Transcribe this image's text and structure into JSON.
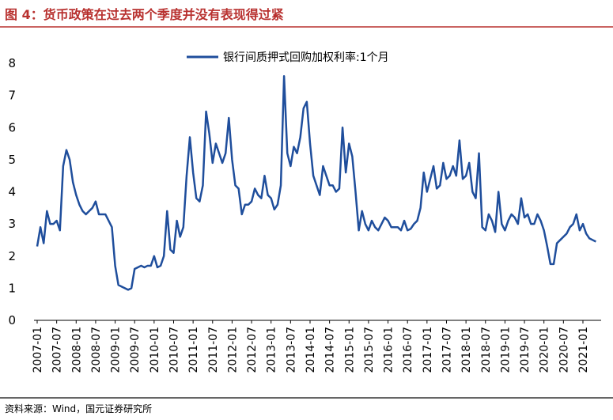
{
  "chart_data": {
    "type": "line",
    "title": "图 4：货币政策在过去两个季度并没有表现得过紧",
    "source": "资料来源：Wind，国元证券研究所",
    "categories": [
      "2007-01",
      null,
      null,
      null,
      null,
      null,
      "2007-07",
      null,
      null,
      null,
      null,
      null,
      "2008-01",
      null,
      null,
      null,
      null,
      null,
      "2008-07",
      null,
      null,
      null,
      null,
      null,
      "2009-01",
      null,
      null,
      null,
      null,
      null,
      "2009-07",
      null,
      null,
      null,
      null,
      null,
      "2010-01",
      null,
      null,
      null,
      null,
      null,
      "2010-07",
      null,
      null,
      null,
      null,
      null,
      "2011-01",
      null,
      null,
      null,
      null,
      null,
      "2011-07",
      null,
      null,
      null,
      null,
      null,
      "2012-01",
      null,
      null,
      null,
      null,
      null,
      "2012-07",
      null,
      null,
      null,
      null,
      null,
      "2013-01",
      null,
      null,
      null,
      null,
      null,
      "2013-07",
      null,
      null,
      null,
      null,
      null,
      "2014-01",
      null,
      null,
      null,
      null,
      null,
      "2014-07",
      null,
      null,
      null,
      null,
      null,
      "2015-01",
      null,
      null,
      null,
      null,
      null,
      "2015-07",
      null,
      null,
      null,
      null,
      null,
      "2016-01",
      null,
      null,
      null,
      null,
      null,
      "2016-07",
      null,
      null,
      null,
      null,
      null,
      "2017-01",
      null,
      null,
      null,
      null,
      null,
      "2017-07",
      null,
      null,
      null,
      null,
      null,
      "2018-01",
      null,
      null,
      null,
      null,
      null,
      "2018-07",
      null,
      null,
      null,
      null,
      null,
      "2019-01",
      null,
      null,
      null,
      null,
      null,
      "2019-07",
      null,
      null,
      null,
      null,
      null,
      "2020-01",
      null,
      null,
      null,
      null,
      null,
      "2020-07",
      null,
      null,
      null,
      null,
      null,
      "2021-01",
      null,
      null,
      null,
      null
    ],
    "series": [
      {
        "name": "银行间质押式回购加权利率:1个月",
        "color": "#1f4e9c",
        "values": [
          2.3,
          2.9,
          2.4,
          3.4,
          3.0,
          3.0,
          3.1,
          2.8,
          4.8,
          5.3,
          5.0,
          4.3,
          3.9,
          3.6,
          3.4,
          3.3,
          3.4,
          3.5,
          3.7,
          3.3,
          3.3,
          3.3,
          3.1,
          2.9,
          1.7,
          1.1,
          1.05,
          1.0,
          0.95,
          1.0,
          1.6,
          1.65,
          1.7,
          1.65,
          1.7,
          1.7,
          2.0,
          1.65,
          1.7,
          2.0,
          3.4,
          2.2,
          2.1,
          3.1,
          2.6,
          2.9,
          4.5,
          5.7,
          4.6,
          3.8,
          3.7,
          4.2,
          6.5,
          5.8,
          4.9,
          5.5,
          5.2,
          4.9,
          5.2,
          6.3,
          5.0,
          4.2,
          4.1,
          3.3,
          3.6,
          3.6,
          3.7,
          4.1,
          3.9,
          3.8,
          4.5,
          3.9,
          3.8,
          3.45,
          3.6,
          4.2,
          7.6,
          5.2,
          4.8,
          5.4,
          5.2,
          5.7,
          6.6,
          6.8,
          5.5,
          4.5,
          4.2,
          3.9,
          4.8,
          4.5,
          4.2,
          4.2,
          4.0,
          4.1,
          6.0,
          4.6,
          5.5,
          5.1,
          4.0,
          2.8,
          3.4,
          3.0,
          2.8,
          3.1,
          2.9,
          2.8,
          3.0,
          3.2,
          3.1,
          2.9,
          2.9,
          2.9,
          2.8,
          3.1,
          2.8,
          2.85,
          3.0,
          3.1,
          3.5,
          4.6,
          4.0,
          4.4,
          4.8,
          4.1,
          4.2,
          4.9,
          4.4,
          4.5,
          4.8,
          4.5,
          5.6,
          4.4,
          4.5,
          4.9,
          4.0,
          3.8,
          5.2,
          2.9,
          2.8,
          3.3,
          3.1,
          2.75,
          4.0,
          3.0,
          2.8,
          3.1,
          3.3,
          3.2,
          3.0,
          3.8,
          3.2,
          3.3,
          3.0,
          3.0,
          3.3,
          3.1,
          2.8,
          2.3,
          1.75,
          1.75,
          2.4,
          2.5,
          2.6,
          2.7,
          2.9,
          3.0,
          3.3,
          2.8,
          3.0,
          2.7,
          2.55,
          2.5,
          2.45
        ]
      }
    ],
    "ylim": [
      0,
      8
    ],
    "yticks": [
      0,
      1,
      2,
      3,
      4,
      5,
      6,
      7,
      8
    ],
    "grid": false,
    "legend": "top"
  }
}
